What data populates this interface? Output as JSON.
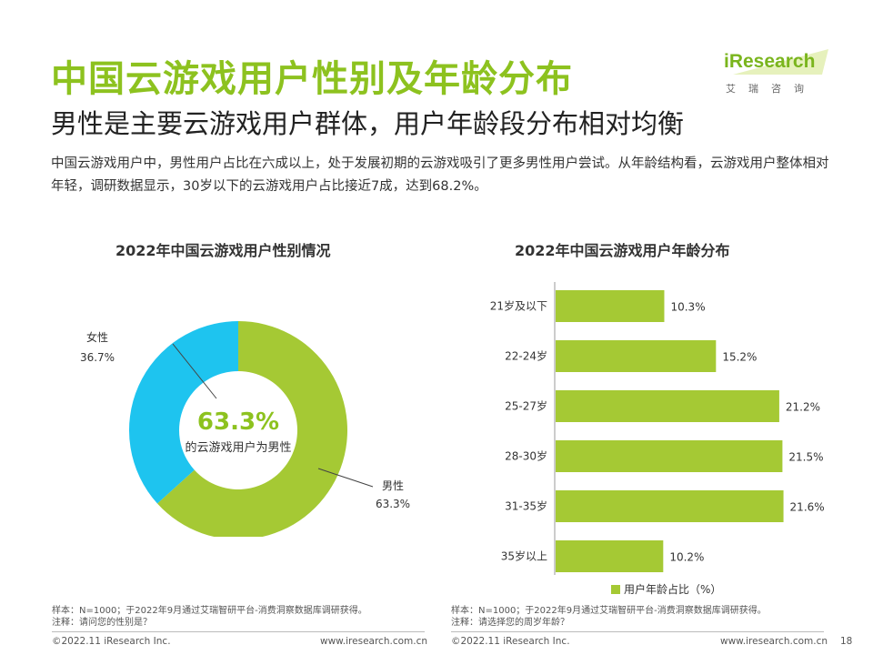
{
  "header": {
    "title": "中国云游戏用户性别及年龄分布",
    "subtitle": "男性是主要云游戏用户群体，用户年龄段分布相对均衡",
    "description": "中国云游戏用户中，男性用户占比在六成以上，处于发展初期的云游戏吸引了更多男性用户尝试。从年龄结构看，云游戏用户整体相对年轻，调研数据显示，30岁以下的云游戏用户占比接近7成，达到68.2%。"
  },
  "logo": {
    "name": "iResearch",
    "sub": "艾瑞咨询"
  },
  "colors": {
    "green": "#a5c934",
    "blue": "#1ec4ef",
    "title_green": "#8dc21f"
  },
  "chart_data": [
    {
      "type": "pie",
      "variant": "donut",
      "title": "2022年中国云游戏用户性别情况",
      "labels": [
        "男性",
        "女性"
      ],
      "values": [
        63.3,
        36.7
      ],
      "value_labels": [
        "63.3%",
        "36.7%"
      ],
      "colors": [
        "#a5c934",
        "#1ec4ef"
      ],
      "center_value": "63.3%",
      "center_text": "的云游戏用户为男性"
    },
    {
      "type": "bar",
      "orientation": "horizontal",
      "title": "2022年中国云游戏用户年龄分布",
      "categories": [
        "21岁及以下",
        "22-24岁",
        "25-27岁",
        "28-30岁",
        "31-35岁",
        "35岁以上"
      ],
      "series": [
        {
          "name": "用户年龄占比（%）",
          "values": [
            10.3,
            15.2,
            21.2,
            21.5,
            21.6,
            10.2
          ],
          "value_labels": [
            "10.3%",
            "15.2%",
            "21.2%",
            "21.5%",
            "21.6%",
            "10.2%"
          ]
        }
      ],
      "legend_position": "bottom",
      "color": "#a5c934"
    }
  ],
  "notes": {
    "left": [
      "样本：N=1000；于2022年9月通过艾瑞智研平台-消费洞察数据库调研获得。",
      "注释：请问您的性别是？"
    ],
    "right": [
      "样本：N=1000；于2022年9月通过艾瑞智研平台-消费洞察数据库调研获得。",
      "注释：请选择您的周岁年龄？"
    ]
  },
  "footer": {
    "copyright": "©2022.11 iResearch Inc.",
    "url": "www.iresearch.com.cn",
    "page": "18"
  }
}
